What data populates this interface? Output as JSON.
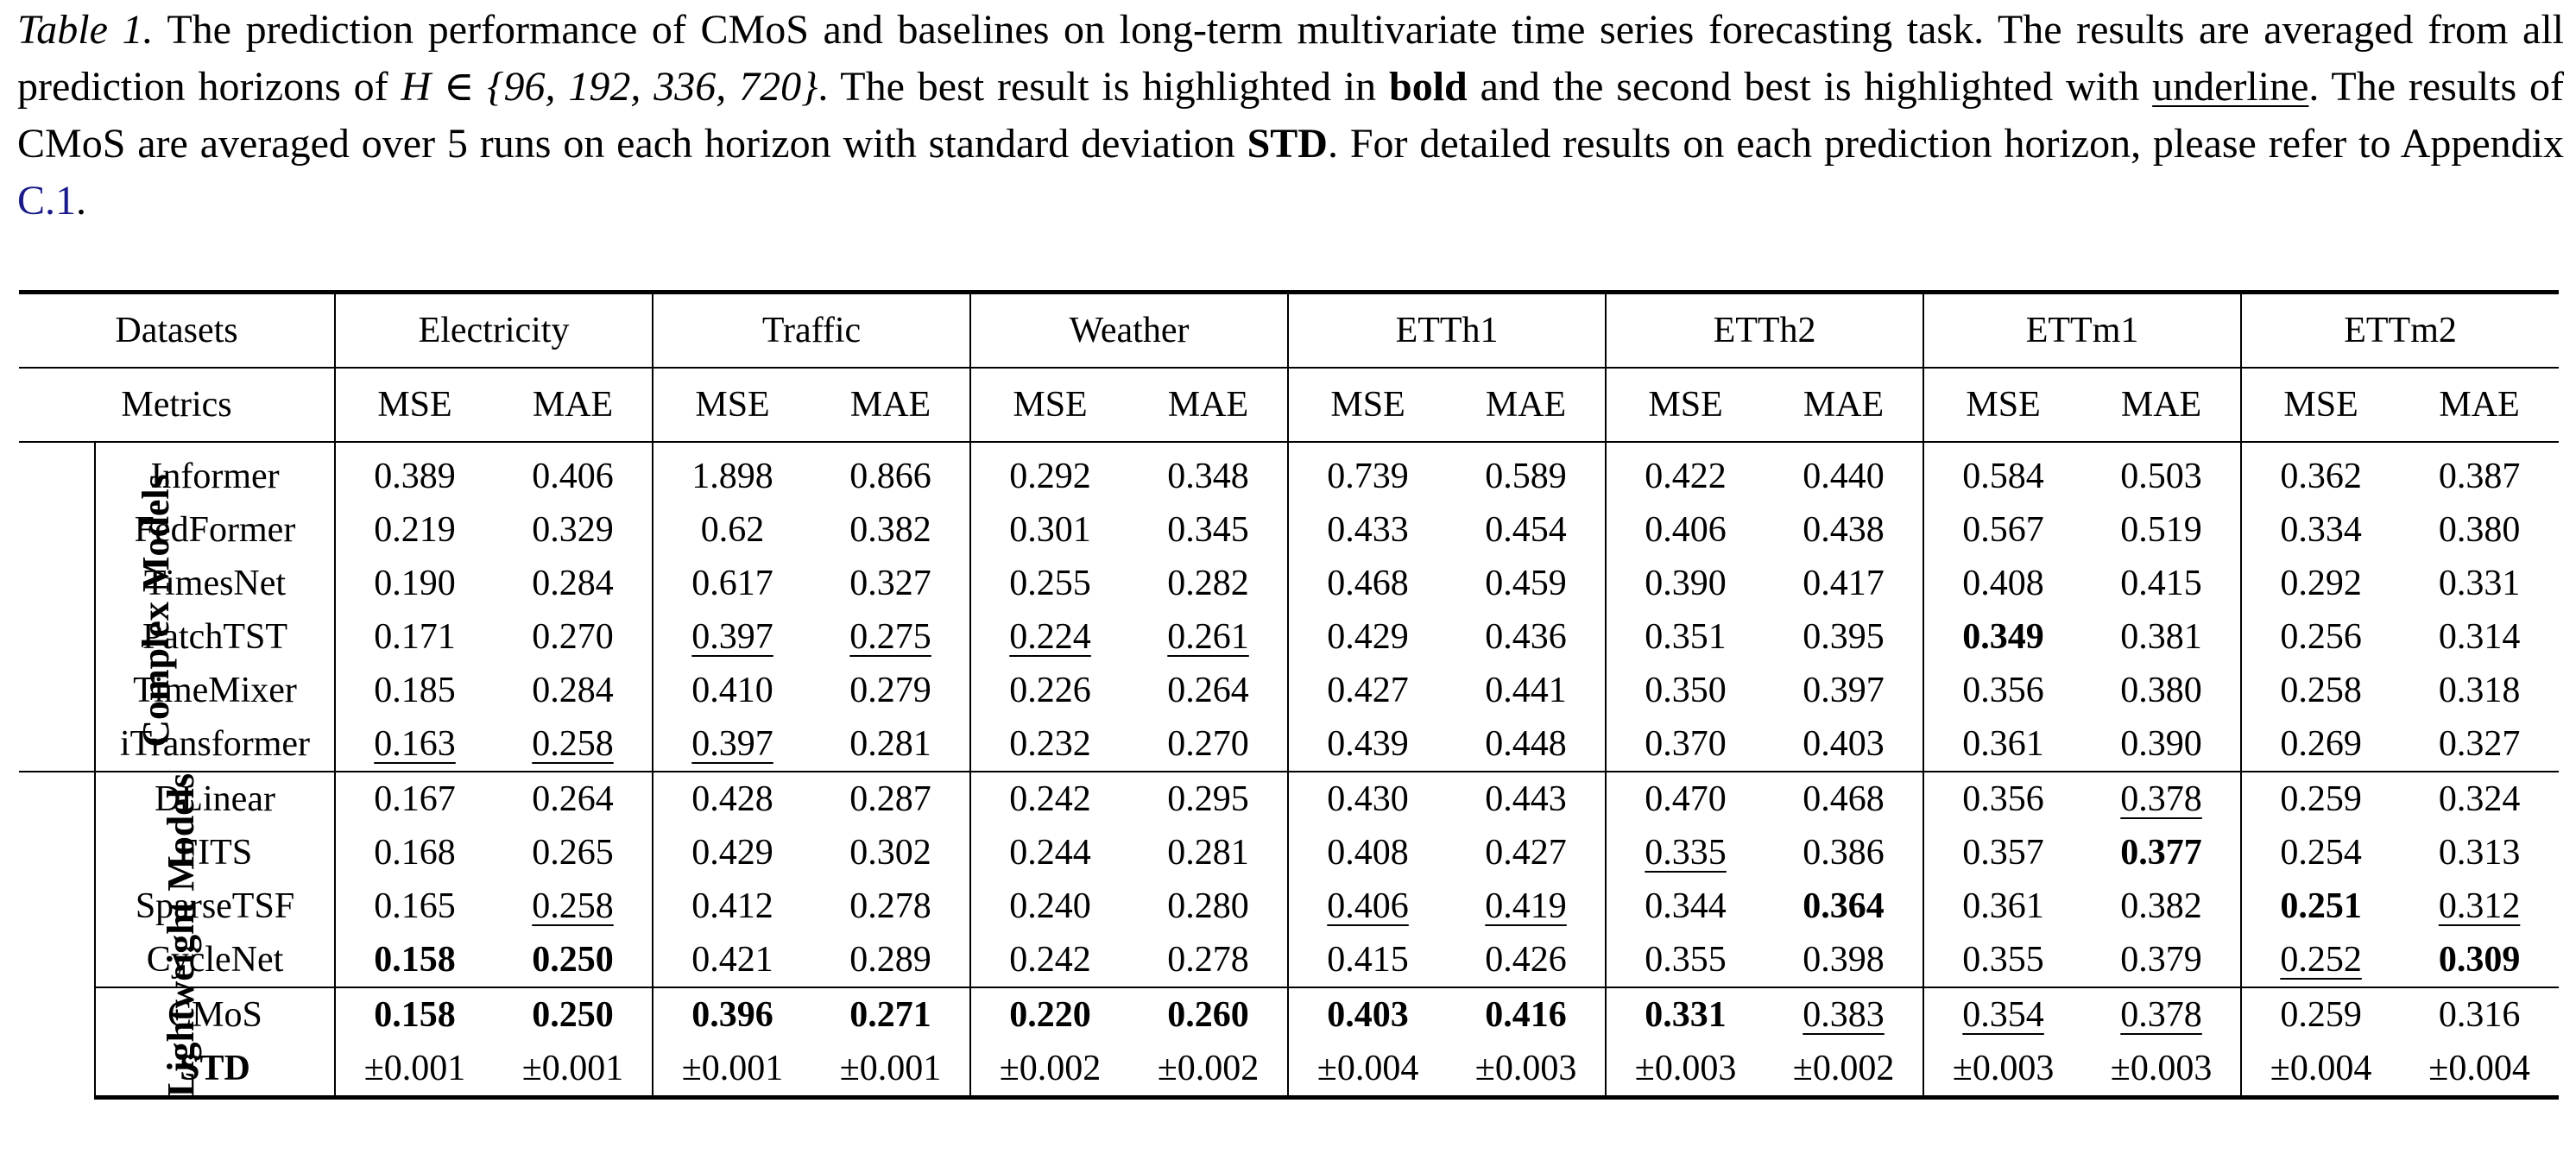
{
  "caption": {
    "label": "Table 1.",
    "part1": " The prediction performance of CMoS and baselines on long-term multivariate time series forecasting task. The results are averaged from all prediction horizons of ",
    "math": "H ∈ {96, 192, 336, 720}",
    "part2": ". The best result is highlighted in ",
    "bold_word": "bold",
    "part3": " and the second best is highlighted with ",
    "underline_word": "underline",
    "part4": ". The results of CMoS are averaged over 5 runs on each horizon with standard deviation ",
    "std_word": "STD",
    "part5": ". For detailed results on each prediction horizon, please refer to Appendix ",
    "appendix_link": "C.1",
    "part6": "."
  },
  "table": {
    "datasets_label": "Datasets",
    "metrics_label": "Metrics",
    "datasets": [
      "Electricity",
      "Traffic",
      "Weather",
      "ETTh1",
      "ETTh2",
      "ETTm1",
      "ETTm2"
    ],
    "metrics": [
      "MSE",
      "MAE",
      "MSE",
      "MAE",
      "MSE",
      "MAE",
      "MSE",
      "MAE",
      "MSE",
      "MAE",
      "MSE",
      "MAE",
      "MSE",
      "MAE"
    ],
    "groups": {
      "complex": "Complex Models",
      "lightweight": "Lightweight Models"
    },
    "rows": [
      {
        "model": "Informer",
        "values": [
          "0.389",
          "0.406",
          "1.898",
          "0.866",
          "0.292",
          "0.348",
          "0.739",
          "0.589",
          "0.422",
          "0.440",
          "0.584",
          "0.503",
          "0.362",
          "0.387"
        ]
      },
      {
        "model": "FedFormer",
        "values": [
          "0.219",
          "0.329",
          "0.62",
          "0.382",
          "0.301",
          "0.345",
          "0.433",
          "0.454",
          "0.406",
          "0.438",
          "0.567",
          "0.519",
          "0.334",
          "0.380"
        ]
      },
      {
        "model": "TimesNet",
        "values": [
          "0.190",
          "0.284",
          "0.617",
          "0.327",
          "0.255",
          "0.282",
          "0.468",
          "0.459",
          "0.390",
          "0.417",
          "0.408",
          "0.415",
          "0.292",
          "0.331"
        ]
      },
      {
        "model": "PatchTST",
        "values": [
          "0.171",
          "0.270",
          "0.397",
          "0.275",
          "0.224",
          "0.261",
          "0.429",
          "0.436",
          "0.351",
          "0.395",
          "0.349",
          "0.381",
          "0.256",
          "0.314"
        ]
      },
      {
        "model": "TimeMixer",
        "values": [
          "0.185",
          "0.284",
          "0.410",
          "0.279",
          "0.226",
          "0.264",
          "0.427",
          "0.441",
          "0.350",
          "0.397",
          "0.356",
          "0.380",
          "0.258",
          "0.318"
        ]
      },
      {
        "model": "iTransformer",
        "values": [
          "0.163",
          "0.258",
          "0.397",
          "0.281",
          "0.232",
          "0.270",
          "0.439",
          "0.448",
          "0.370",
          "0.403",
          "0.361",
          "0.390",
          "0.269",
          "0.327"
        ]
      },
      {
        "model": "DLinear",
        "values": [
          "0.167",
          "0.264",
          "0.428",
          "0.287",
          "0.242",
          "0.295",
          "0.430",
          "0.443",
          "0.470",
          "0.468",
          "0.356",
          "0.378",
          "0.259",
          "0.324"
        ]
      },
      {
        "model": "FITS",
        "values": [
          "0.168",
          "0.265",
          "0.429",
          "0.302",
          "0.244",
          "0.281",
          "0.408",
          "0.427",
          "0.335",
          "0.386",
          "0.357",
          "0.377",
          "0.254",
          "0.313"
        ]
      },
      {
        "model": "SparseTSF",
        "values": [
          "0.165",
          "0.258",
          "0.412",
          "0.278",
          "0.240",
          "0.280",
          "0.406",
          "0.419",
          "0.344",
          "0.364",
          "0.361",
          "0.382",
          "0.251",
          "0.312"
        ]
      },
      {
        "model": "CycleNet",
        "values": [
          "0.158",
          "0.250",
          "0.421",
          "0.289",
          "0.242",
          "0.278",
          "0.415",
          "0.426",
          "0.355",
          "0.398",
          "0.355",
          "0.379",
          "0.252",
          "0.309"
        ]
      },
      {
        "model": "CMoS",
        "values": [
          "0.158",
          "0.250",
          "0.396",
          "0.271",
          "0.220",
          "0.260",
          "0.403",
          "0.416",
          "0.331",
          "0.383",
          "0.354",
          "0.378",
          "0.259",
          "0.316"
        ]
      },
      {
        "model": "STD",
        "values": [
          "±0.001",
          "±0.001",
          "±0.001",
          "±0.001",
          "±0.002",
          "±0.002",
          "±0.004",
          "±0.003",
          "±0.003",
          "±0.002",
          "±0.003",
          "±0.003",
          "±0.004",
          "±0.004"
        ]
      }
    ]
  }
}
